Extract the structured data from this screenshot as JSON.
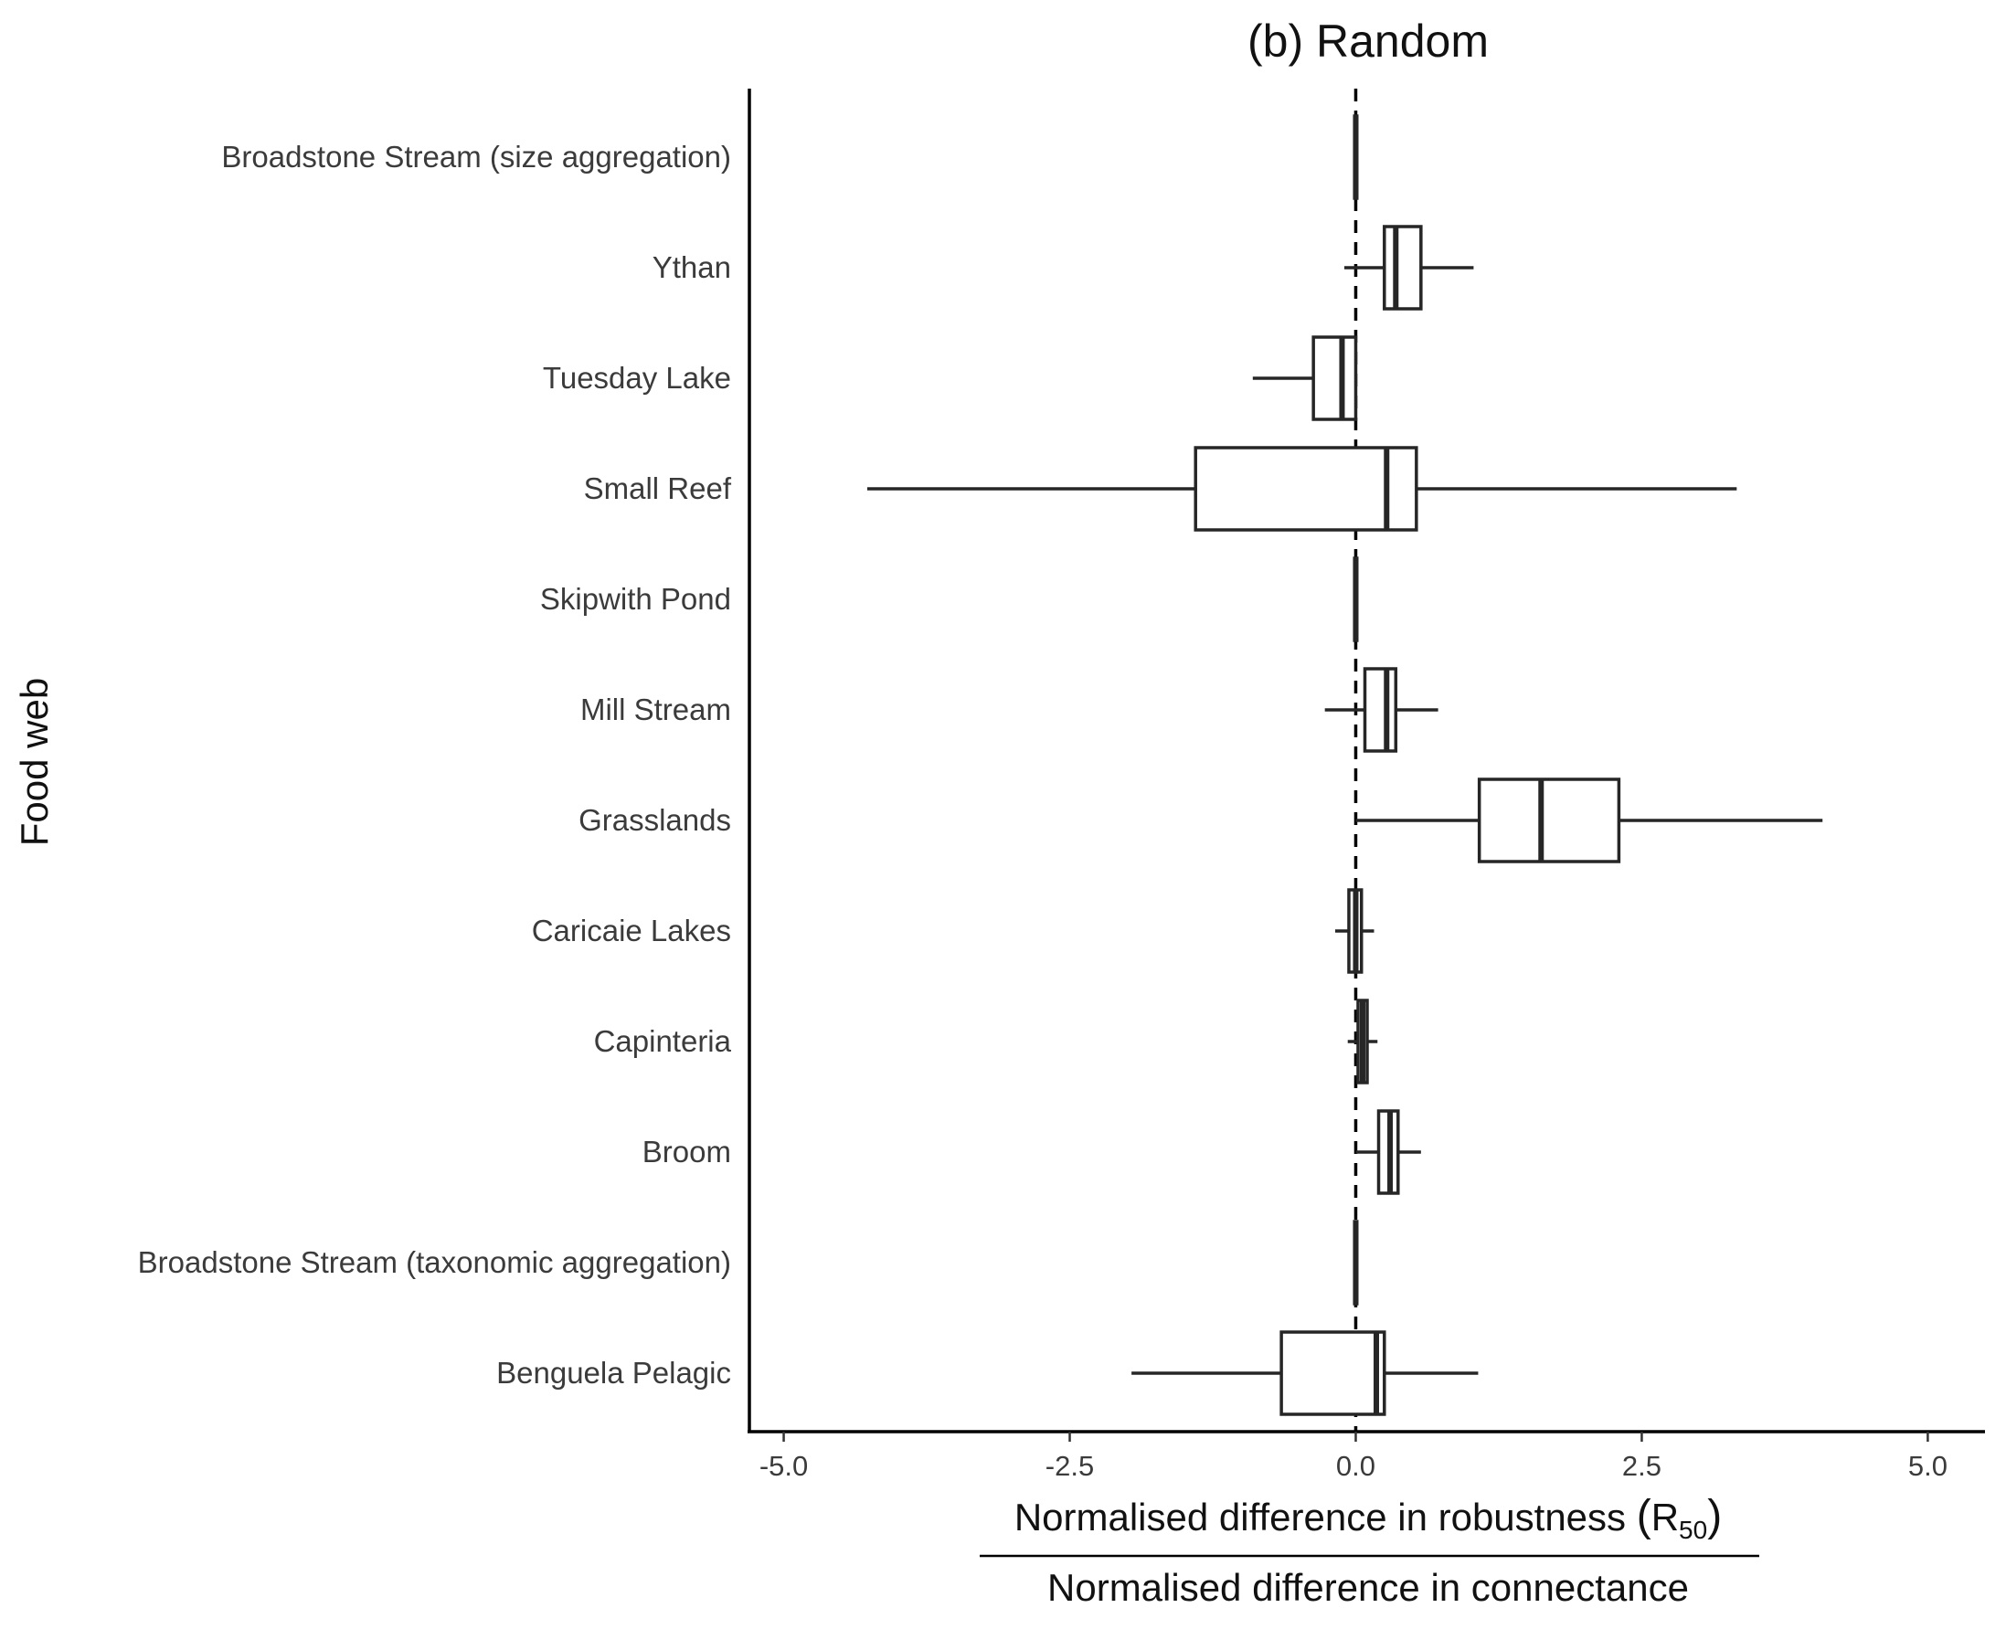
{
  "chart_data": {
    "type": "boxplot",
    "orientation": "horizontal",
    "title": "(b) Random",
    "ylabel": "Food web",
    "xlabel": {
      "numerator_prefix": "Normalised difference in robustness ",
      "numerator_symbol": "R",
      "numerator_subscript": "50",
      "denominator": "Normalised difference in connectance"
    },
    "xlim": [
      -5.3,
      5.5
    ],
    "x_ticks": [
      -5.0,
      -2.5,
      0.0,
      2.5,
      5.0
    ],
    "x_tick_labels": [
      "-5.0",
      "-2.5",
      "0.0",
      "2.5",
      "5.0"
    ],
    "reference_line": {
      "x": 0,
      "style": "dashed"
    },
    "grid": false,
    "categories": [
      "Broadstone Stream (size aggregation)",
      "Ythan",
      "Tuesday Lake",
      "Small Reef",
      "Skipwith Pond",
      "Mill Stream",
      "Grasslands",
      "Caricaie Lakes",
      "Capinteria",
      "Broom",
      "Broadstone Stream (taxonomic aggregation)",
      "Benguela Pelagic"
    ],
    "boxes": [
      {
        "whisker_low": -0.01,
        "q1": -0.01,
        "median": 0.0,
        "q3": 0.01,
        "whisker_high": 0.01
      },
      {
        "whisker_low": -0.1,
        "q1": 0.25,
        "median": 0.35,
        "q3": 0.57,
        "whisker_high": 1.03
      },
      {
        "whisker_low": -0.9,
        "q1": -0.37,
        "median": -0.12,
        "q3": 0.0,
        "whisker_high": 0.0
      },
      {
        "whisker_low": -4.27,
        "q1": -1.4,
        "median": 0.27,
        "q3": 0.53,
        "whisker_high": 3.33
      },
      {
        "whisker_low": -0.01,
        "q1": -0.01,
        "median": 0.0,
        "q3": 0.01,
        "whisker_high": 0.01
      },
      {
        "whisker_low": -0.27,
        "q1": 0.08,
        "median": 0.27,
        "q3": 0.35,
        "whisker_high": 0.72
      },
      {
        "whisker_low": 0.0,
        "q1": 1.08,
        "median": 1.62,
        "q3": 2.3,
        "whisker_high": 4.08
      },
      {
        "whisker_low": -0.18,
        "q1": -0.06,
        "median": 0.0,
        "q3": 0.05,
        "whisker_high": 0.16
      },
      {
        "whisker_low": -0.07,
        "q1": 0.02,
        "median": 0.06,
        "q3": 0.1,
        "whisker_high": 0.19
      },
      {
        "whisker_low": 0.0,
        "q1": 0.2,
        "median": 0.3,
        "q3": 0.37,
        "whisker_high": 0.57
      },
      {
        "whisker_low": -0.01,
        "q1": -0.01,
        "median": 0.0,
        "q3": 0.01,
        "whisker_high": 0.01
      },
      {
        "whisker_low": -1.96,
        "q1": -0.65,
        "median": 0.18,
        "q3": 0.25,
        "whisker_high": 1.07
      }
    ]
  }
}
